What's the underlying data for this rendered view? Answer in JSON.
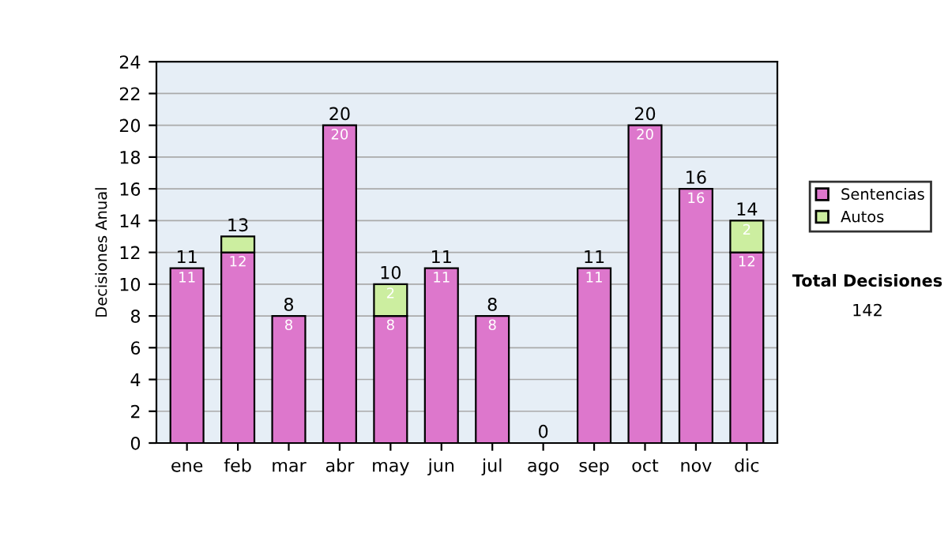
{
  "chart_data": {
    "type": "bar",
    "stacked": true,
    "ylabel": "Decisiones Anual",
    "categories": [
      "ene",
      "feb",
      "mar",
      "abr",
      "may",
      "jun",
      "jul",
      "ago",
      "sep",
      "oct",
      "nov",
      "dic"
    ],
    "series": [
      {
        "name": "Sentencias",
        "color": "#dd77cc",
        "values": [
          11,
          12,
          8,
          20,
          8,
          11,
          8,
          0,
          11,
          20,
          16,
          12
        ],
        "value_labels": [
          "11",
          "12",
          "8",
          "20",
          "8",
          "11",
          "8",
          null,
          "11",
          "20",
          "16",
          "12"
        ]
      },
      {
        "name": "Autos",
        "color": "#cceea0",
        "values": [
          null,
          1,
          null,
          null,
          2,
          null,
          null,
          null,
          null,
          null,
          null,
          2
        ],
        "value_labels": [
          null,
          null,
          null,
          null,
          "2",
          null,
          null,
          null,
          null,
          null,
          null,
          "2"
        ]
      }
    ],
    "totals": [
      "11",
      "13",
      "8",
      "20",
      "10",
      "11",
      "8",
      "0",
      "11",
      "20",
      "16",
      "14"
    ],
    "ylim": [
      0,
      24
    ],
    "yticks": [
      0,
      2,
      4,
      6,
      8,
      10,
      12,
      14,
      16,
      18,
      20,
      22,
      24
    ],
    "grid": "y",
    "legend": "right",
    "annotations": [
      "Total Decisiones",
      "142"
    ]
  }
}
